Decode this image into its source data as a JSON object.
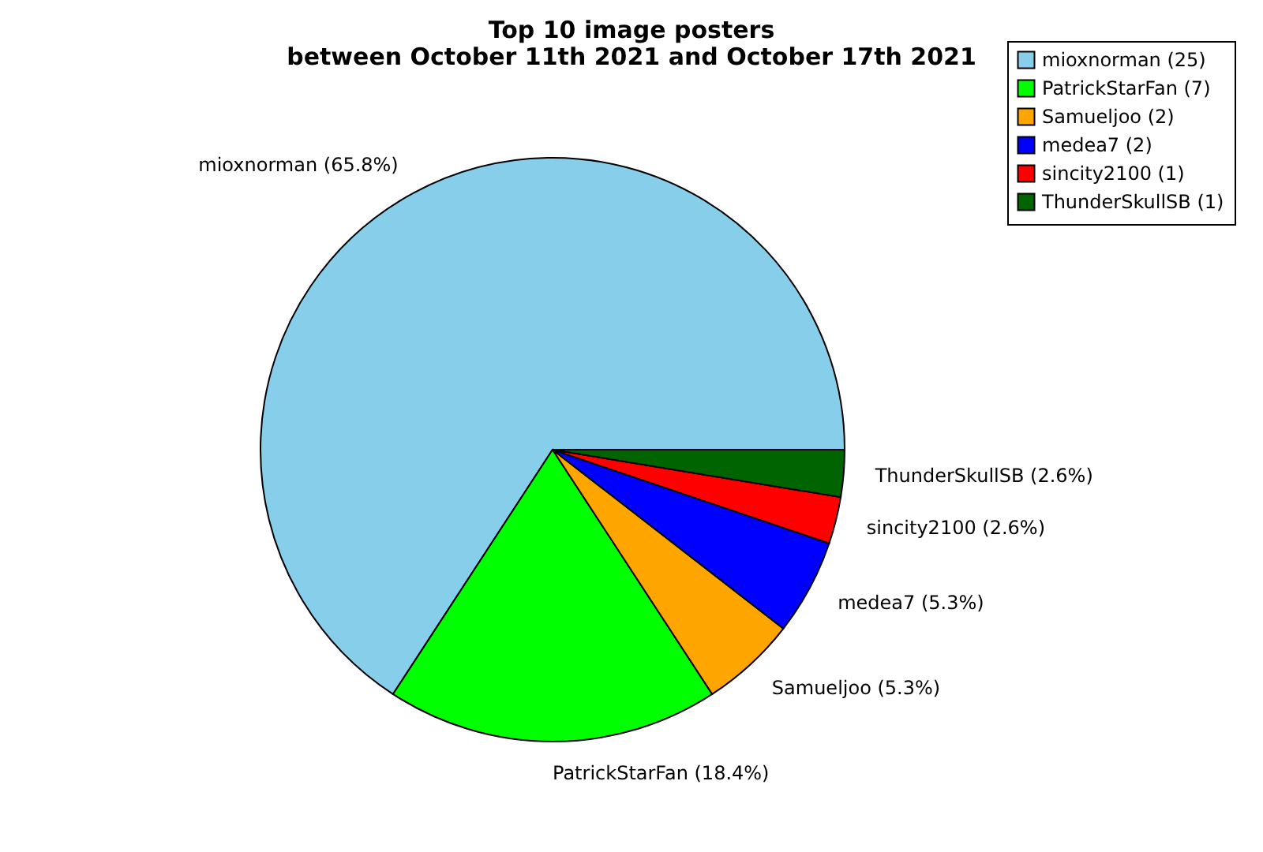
{
  "chart_data": {
    "type": "pie",
    "title": "Top 10 image posters\nbetween October 11th 2021 and October 17th 2021",
    "categories": [
      "mioxnorman (25)",
      "PatrickStarFan (7)",
      "Samueljoo (2)",
      "medea7 (2)",
      "sincity2100 (1)",
      "ThunderSkullSB (1)"
    ],
    "values": [
      65.8,
      18.4,
      5.3,
      5.3,
      2.6,
      2.6
    ],
    "value_labels": [
      "mioxnorman (65.8%)",
      "PatrickStarFan (18.4%)",
      "Samueljoo (5.3%)",
      "medea7 (5.3%)",
      "sincity2100 (2.6%)",
      "ThunderSkullSB (2.6%)"
    ],
    "colors": [
      "#87ceeb",
      "#00ff00",
      "#ffa500",
      "#0000ff",
      "#ff0000",
      "#006400"
    ],
    "legend": "top right"
  }
}
